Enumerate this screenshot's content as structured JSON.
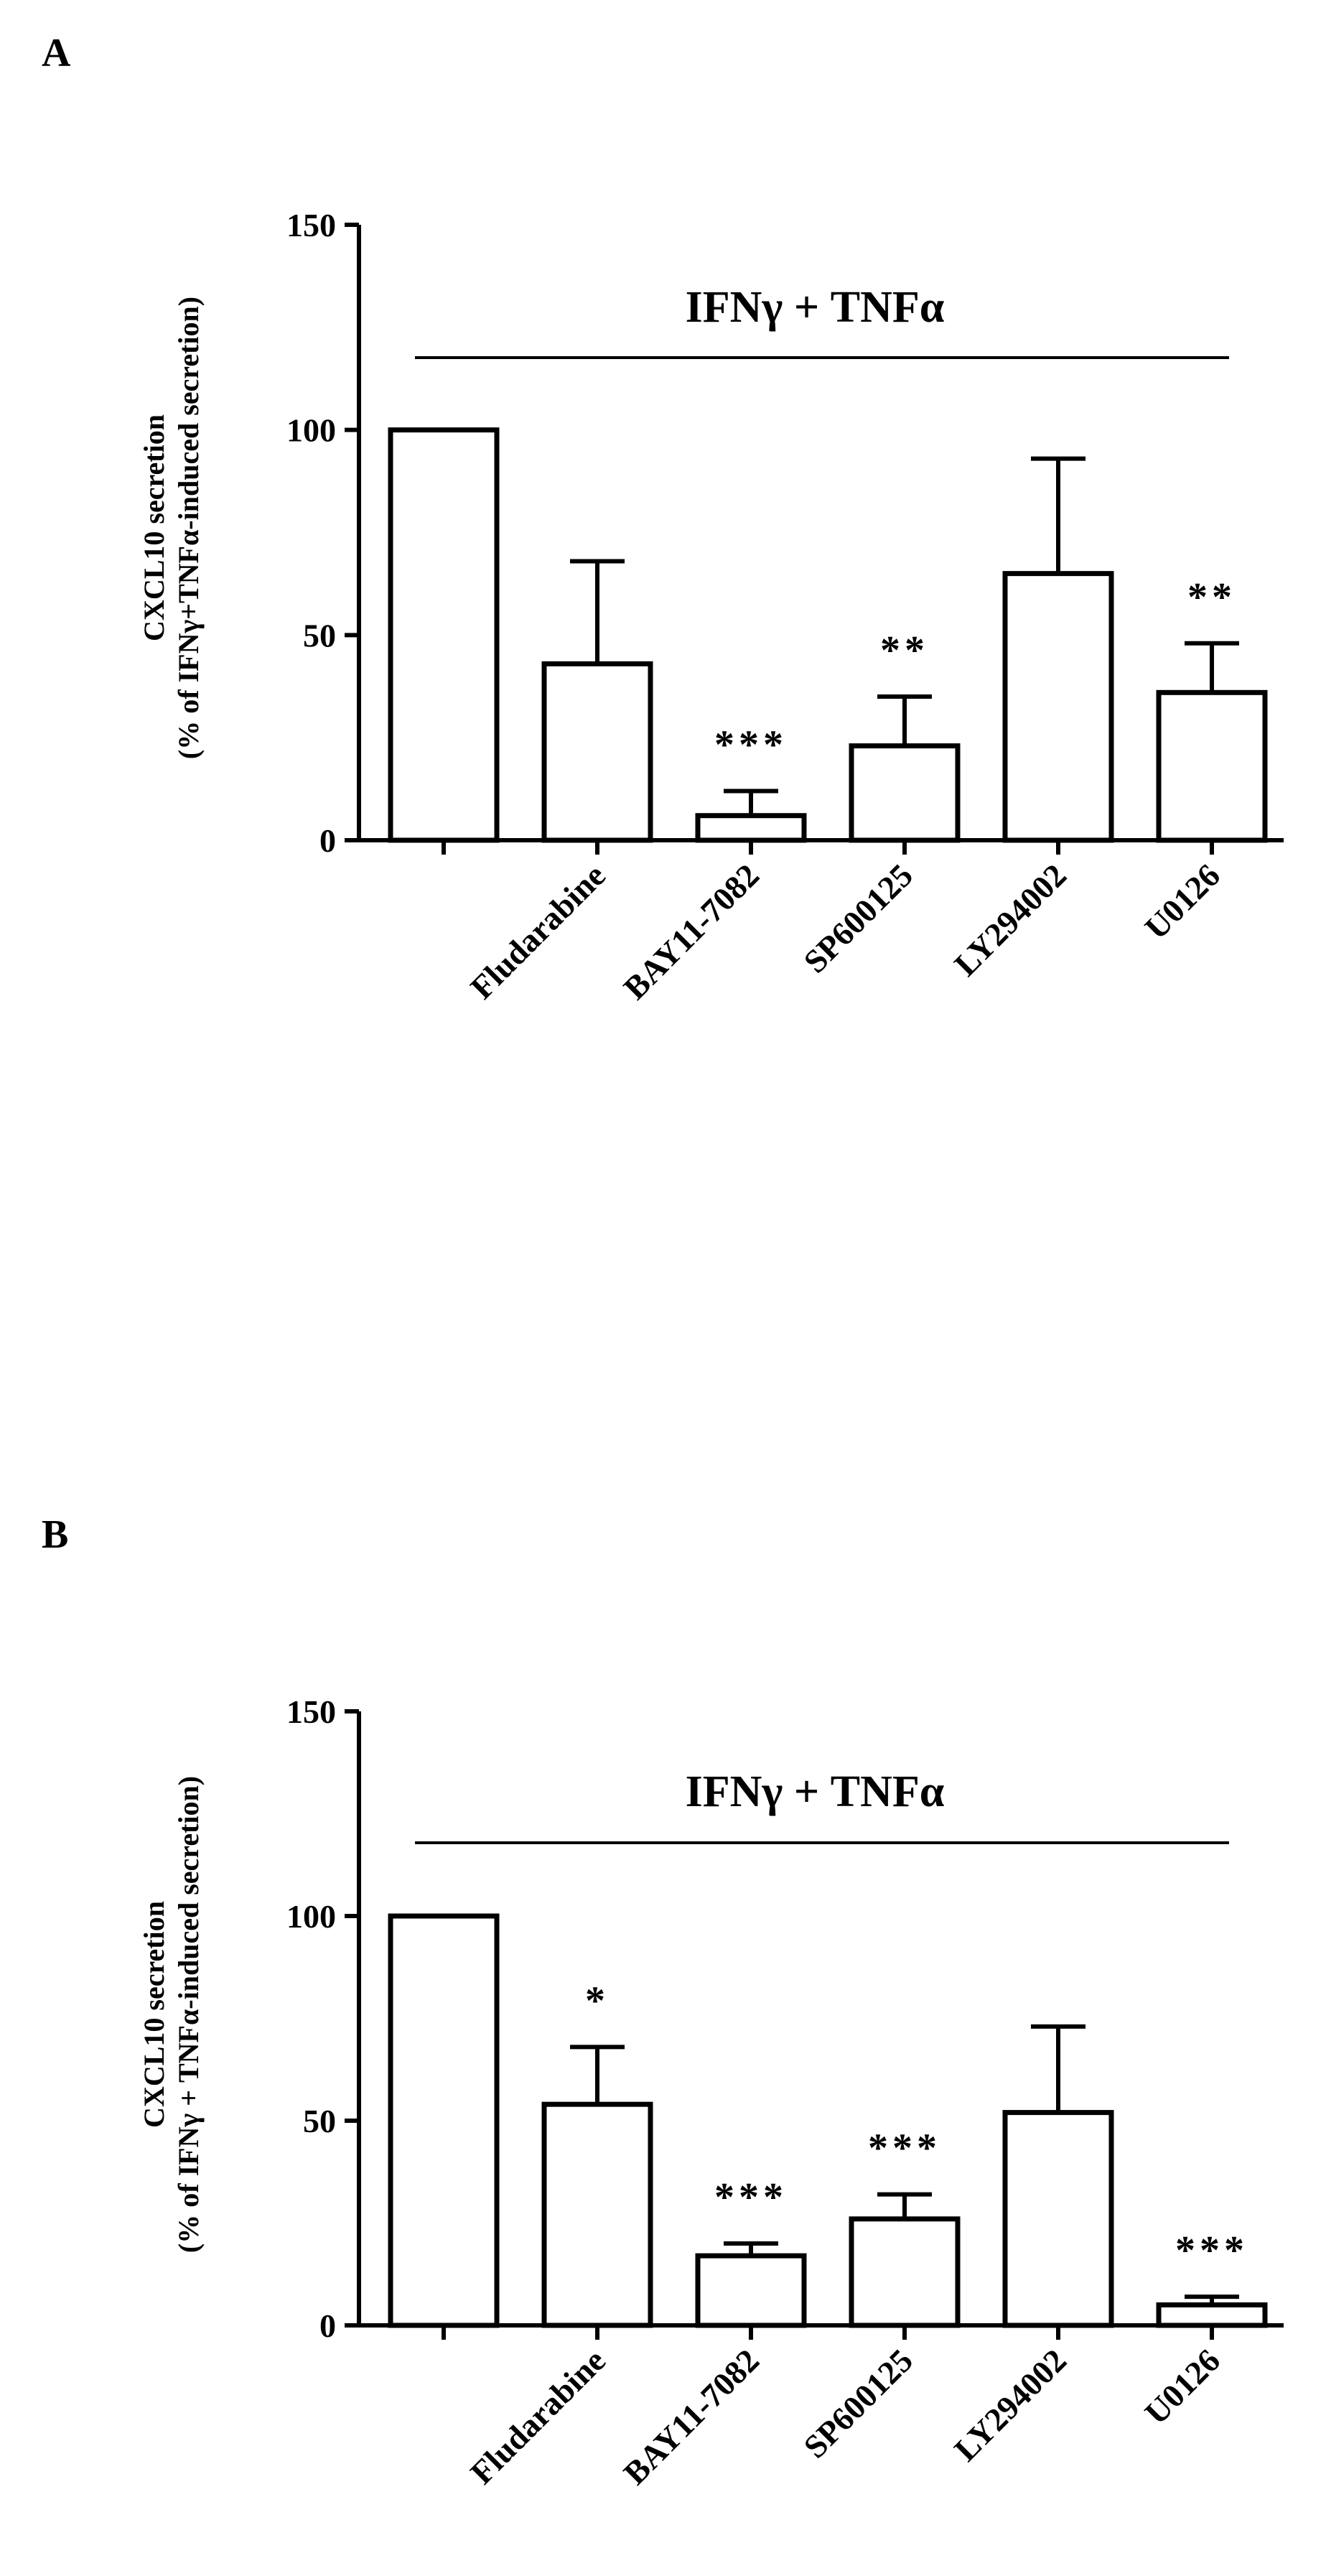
{
  "panels": [
    {
      "panel_label": "A",
      "treatment_label": "IFNγ + TNFα",
      "ylabel_line1": "CXCL10 secretion",
      "ylabel_line2": "(% of IFNγ+TNFα-induced secretion)"
    },
    {
      "panel_label": "B",
      "treatment_label": "IFNγ + TNFα",
      "ylabel_line1": "CXCL10 secretion",
      "ylabel_line2": "(% of IFNγ + TNFα-induced secretion)"
    }
  ],
  "chart_data": [
    {
      "type": "bar",
      "categories": [
        "",
        "Fludarabine",
        "BAY11-7082",
        "SP600125",
        "LY294002",
        "U0126"
      ],
      "values": [
        100,
        43,
        6,
        23,
        65,
        36
      ],
      "errors": [
        0,
        25,
        6,
        12,
        28,
        12
      ],
      "significance": [
        "",
        "",
        "***",
        "**",
        "",
        "**"
      ],
      "ylim": [
        0,
        150
      ],
      "yticks": [
        0,
        50,
        100,
        150
      ],
      "grid": false,
      "bar_fill": "#ffffff",
      "bar_stroke": "#000000"
    },
    {
      "type": "bar",
      "categories": [
        "",
        "Fludarabine",
        "BAY11-7082",
        "SP600125",
        "LY294002",
        "U0126"
      ],
      "values": [
        100,
        54,
        17,
        26,
        52,
        5
      ],
      "errors": [
        0,
        14,
        3,
        6,
        21,
        2
      ],
      "significance": [
        "",
        "*",
        "***",
        "***",
        "",
        "***"
      ],
      "ylim": [
        0,
        150
      ],
      "yticks": [
        0,
        50,
        100,
        150
      ],
      "grid": false,
      "bar_fill": "#ffffff",
      "bar_stroke": "#000000"
    }
  ]
}
